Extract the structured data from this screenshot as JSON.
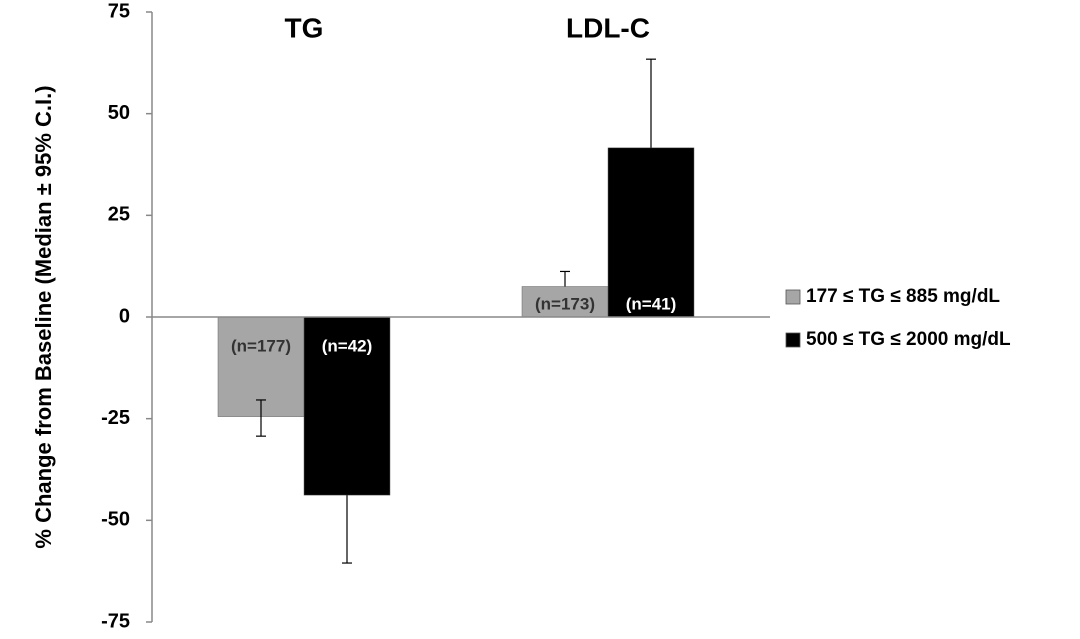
{
  "chart_data": {
    "type": "bar",
    "y_label": "% Change from Baseline (Median ± 95% C.I.)",
    "categories": [
      "TG",
      "LDL-C"
    ],
    "series": [
      {
        "name": "177 ≤ TG ≤ 885 mg/dL",
        "color": "#a6a6a6",
        "values": [
          -24.5,
          7.5
        ],
        "ci_lower": [
          -29.3,
          null
        ],
        "ci_upper": [
          -20.4,
          11.2
        ],
        "n_labels": [
          "(n=177)",
          "(n=173)"
        ],
        "label_color": "#333333"
      },
      {
        "name": "500 ≤ TG ≤ 2000 mg/dL",
        "color": "#000000",
        "values": [
          -43.8,
          41.6
        ],
        "ci_lower": [
          -60.5,
          null
        ],
        "ci_upper": [
          null,
          63.4
        ],
        "n_labels": [
          "(n=42)",
          "(n=41)"
        ],
        "label_color": "#ffffff"
      }
    ],
    "ylim": [
      -75,
      75
    ],
    "yticks": [
      -75,
      -50,
      -25,
      0,
      25,
      50,
      75
    ],
    "legend": "right"
  }
}
